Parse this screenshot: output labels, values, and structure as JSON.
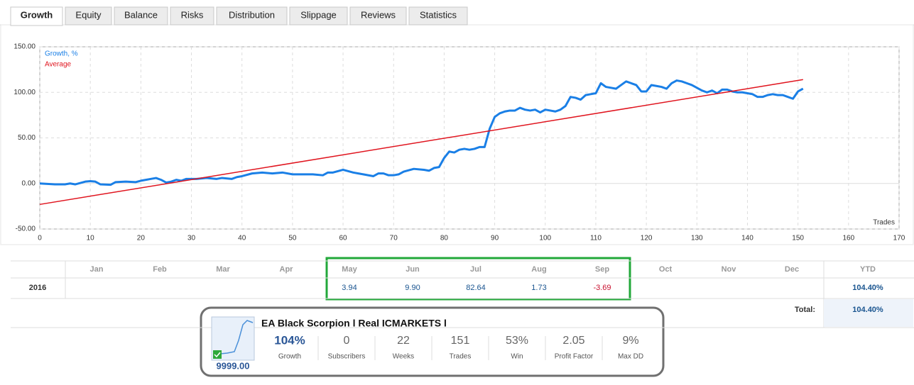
{
  "tabs": [
    "Growth",
    "Equity",
    "Balance",
    "Risks",
    "Distribution",
    "Slippage",
    "Reviews",
    "Statistics"
  ],
  "chart_data": {
    "type": "line",
    "x_label": "Trades",
    "grid": true,
    "legend": "top-left",
    "xlim": [
      0,
      170
    ],
    "xticks": [
      0,
      10,
      20,
      30,
      40,
      50,
      60,
      70,
      80,
      90,
      100,
      110,
      120,
      130,
      140,
      150,
      160,
      170
    ],
    "ylim": [
      -50,
      150
    ],
    "yticks": [
      {
        "value": -50,
        "label": "-50.00"
      },
      {
        "value": 0,
        "label": "0.00"
      },
      {
        "value": 50,
        "label": "50.00"
      },
      {
        "value": 100,
        "label": "100.00"
      },
      {
        "value": 150,
        "label": "150.00"
      }
    ],
    "series": [
      {
        "name": "Growth, %",
        "color": "#1a7fe6",
        "x": [
          0,
          3,
          5,
          6,
          7,
          9,
          10,
          11,
          12,
          14,
          15,
          17,
          19,
          20,
          22,
          23,
          24,
          25,
          26,
          27,
          28,
          29,
          31,
          33,
          35,
          36,
          38,
          39,
          40,
          42,
          44,
          46,
          48,
          50,
          52,
          54,
          56,
          57,
          58,
          60,
          62,
          64,
          66,
          67,
          68,
          69,
          70,
          71,
          72,
          74,
          76,
          77,
          78,
          79,
          80,
          81,
          82,
          83,
          84,
          85,
          86,
          87,
          88,
          89,
          90,
          91,
          92,
          93,
          94,
          95,
          96,
          97,
          98,
          99,
          100,
          101,
          102,
          103,
          104,
          105,
          106,
          107,
          108,
          109,
          110,
          111,
          112,
          113,
          114,
          115,
          116,
          117,
          118,
          119,
          120,
          121,
          122,
          123,
          124,
          125,
          126,
          127,
          128,
          129,
          130,
          131,
          132,
          133,
          134,
          135,
          136,
          137,
          138,
          139,
          140,
          141,
          142,
          143,
          144,
          145,
          146,
          147,
          148,
          149,
          150,
          151
        ],
        "values": [
          0,
          -1,
          -1,
          0,
          -1,
          2,
          2.5,
          2,
          -1,
          -1.5,
          1.5,
          2,
          1.5,
          3,
          5,
          6,
          4,
          1,
          2,
          4,
          3,
          5,
          5,
          6,
          5,
          6,
          5,
          7,
          8,
          11,
          12,
          11,
          12,
          10,
          10,
          10,
          9,
          12,
          12,
          15,
          12,
          10,
          8,
          11,
          11,
          9,
          9,
          10,
          13,
          16,
          15,
          14,
          17,
          18,
          28,
          35,
          34,
          37,
          38,
          37,
          38,
          40,
          40,
          60,
          73,
          77,
          79,
          80,
          80,
          83,
          81,
          80,
          81,
          78,
          81,
          80,
          79,
          81,
          85,
          95,
          94,
          92,
          97,
          98,
          99,
          110,
          106,
          105,
          104,
          108,
          112,
          110,
          108,
          101,
          101,
          108,
          107,
          106,
          104,
          110,
          113,
          112,
          110,
          108,
          105,
          102,
          100,
          102,
          99,
          103,
          103,
          101,
          100,
          100,
          99,
          98,
          95,
          95,
          97,
          98,
          97,
          97,
          95,
          93,
          101,
          104
        ]
      },
      {
        "name": "Average",
        "color": "#e0141e",
        "x": [
          0,
          151
        ],
        "values": [
          -23,
          114
        ]
      }
    ]
  },
  "table": {
    "header": {
      "months": [
        "Jan",
        "Feb",
        "Mar",
        "Apr",
        "May",
        "Jun",
        "Jul",
        "Aug",
        "Sep",
        "Oct",
        "Nov",
        "Dec"
      ],
      "ytd": "YTD"
    },
    "rows": [
      {
        "year": "2016",
        "cells": [
          null,
          null,
          null,
          null,
          "3.94",
          "9.90",
          "82.64",
          "1.73",
          "-3.69",
          null,
          null,
          null
        ],
        "ytd": "104.40%"
      }
    ],
    "total": {
      "label": "Total:",
      "value": "104.40%"
    }
  },
  "widget": {
    "title": "EA Black Scorpion l Real ICMARKETS l",
    "price": "9999.00",
    "stats": [
      {
        "value": "104%",
        "label": "Growth"
      },
      {
        "value": "0",
        "label": "Subscribers"
      },
      {
        "value": "22",
        "label": "Weeks"
      },
      {
        "value": "151",
        "label": "Trades"
      },
      {
        "value": "53%",
        "label": "Win"
      },
      {
        "value": "2.05",
        "label": "Profit Factor"
      },
      {
        "value": "9%",
        "label": "Max DD"
      }
    ]
  }
}
